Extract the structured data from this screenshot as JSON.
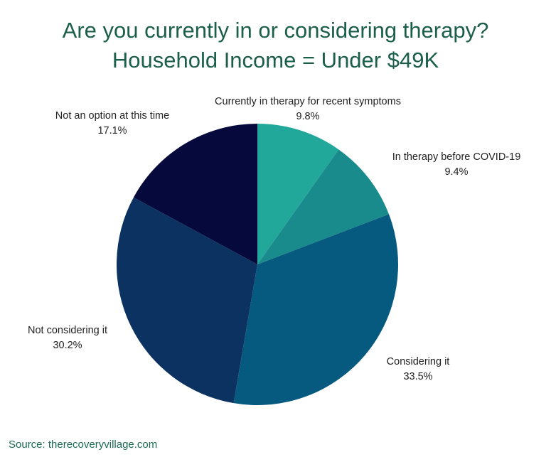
{
  "chart_data": {
    "type": "pie",
    "title": "Are you currently in or considering therapy?",
    "subtitle": "Household Income = Under $49K",
    "categories": [
      "Currently in therapy for recent symptoms",
      "In therapy before COVID-19",
      "Considering it",
      "Not considering it",
      "Not an option at this time"
    ],
    "values": [
      9.8,
      9.4,
      33.5,
      30.2,
      17.1
    ],
    "value_labels": [
      "9.8%",
      "9.4%",
      "33.5%",
      "30.2%",
      "17.1%"
    ],
    "colors": [
      "#21a89a",
      "#1a8b8c",
      "#075a7f",
      "#0b3260",
      "#06093b"
    ],
    "start_angle": "12 o'clock, clockwise"
  },
  "title_color": "#1b5e4a",
  "source": "Source: therecoveryvillage.com"
}
